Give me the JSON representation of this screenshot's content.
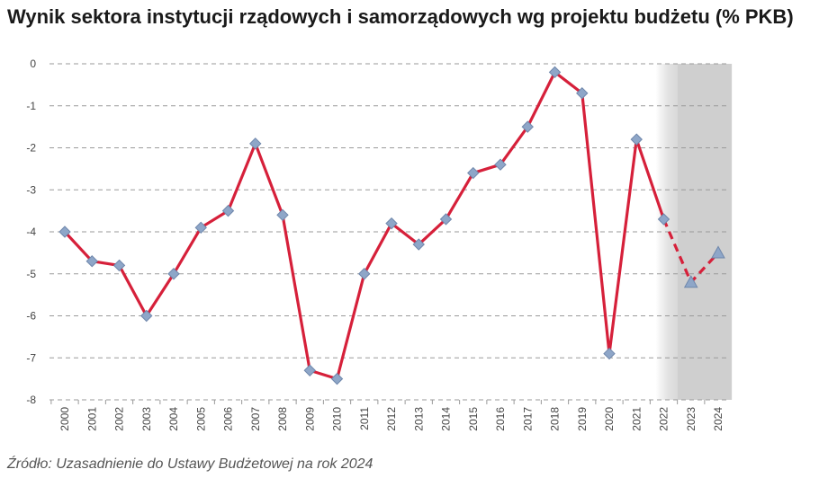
{
  "title": "Wynik sektora instytucji rządowych i samorządowych wg projektu budżetu (% PKB)",
  "source": "Źródło: Uzasadnienie do Ustawy Budżetowej na rok 2024",
  "chart_data": {
    "type": "line",
    "title": "Wynik sektora instytucji rządowych i samorządowych wg projektu budżetu (% PKB)",
    "xlabel": "",
    "ylabel": "",
    "ylim": [
      -8,
      0
    ],
    "yticks": [
      0,
      -1,
      -2,
      -3,
      -4,
      -5,
      -6,
      -7,
      -8
    ],
    "grid": true,
    "legend": "none",
    "line_color": "#d6203a",
    "marker_color": "#8ea6c8",
    "shade_color": "#cfcfcf",
    "categories": [
      "2000",
      "2001",
      "2002",
      "2003",
      "2004",
      "2005",
      "2006",
      "2007",
      "2008",
      "2009",
      "2010",
      "2011",
      "2012",
      "2013",
      "2014",
      "2015",
      "2016",
      "2017",
      "2018",
      "2019",
      "2020",
      "2021",
      "2022",
      "2023",
      "2024"
    ],
    "values": [
      -4.0,
      -4.7,
      -4.8,
      -6.0,
      -5.0,
      -3.9,
      -3.5,
      -1.9,
      -3.6,
      -7.3,
      -7.5,
      -5.0,
      -3.8,
      -4.3,
      -3.7,
      -2.6,
      -2.4,
      -1.5,
      -0.2,
      -0.7,
      -6.9,
      -1.8,
      -3.7,
      -5.2,
      -4.5
    ],
    "forecast_from": "2022",
    "shaded_categories": [
      "2023",
      "2024"
    ],
    "triangle_markers": [
      "2023",
      "2024"
    ]
  }
}
